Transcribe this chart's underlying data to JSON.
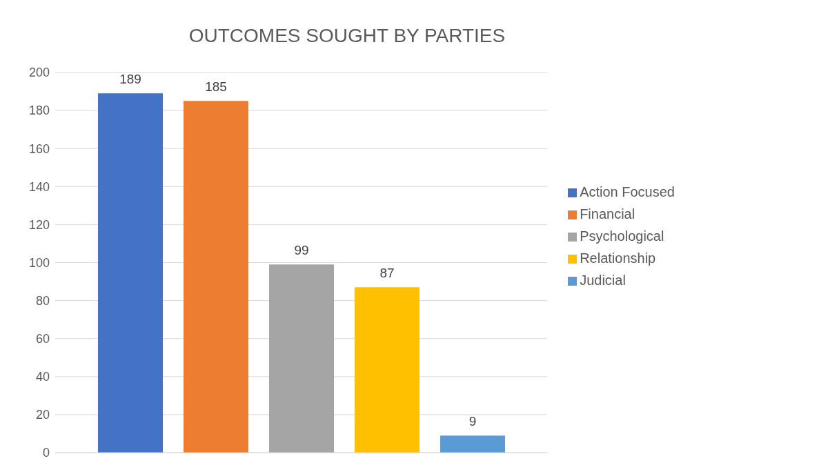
{
  "chart_data": {
    "type": "bar",
    "title": "OUTCOMES SOUGHT BY PARTIES",
    "categories": [
      null
    ],
    "series": [
      {
        "name": "Action Focused",
        "color": "#4472c4",
        "values": [
          189
        ]
      },
      {
        "name": "Financial",
        "color": "#ed7d31",
        "values": [
          185
        ]
      },
      {
        "name": "Psychological",
        "color": "#a5a5a5",
        "values": [
          99
        ]
      },
      {
        "name": "Relationship",
        "color": "#ffc000",
        "values": [
          87
        ]
      },
      {
        "name": "Judicial",
        "color": "#5b9bd5",
        "values": [
          9
        ]
      }
    ],
    "ylim": [
      0,
      200
    ],
    "yticks": [
      0,
      20,
      40,
      60,
      80,
      100,
      120,
      140,
      160,
      180,
      200
    ],
    "grid": "y",
    "legend": "right",
    "data_labels": true
  }
}
